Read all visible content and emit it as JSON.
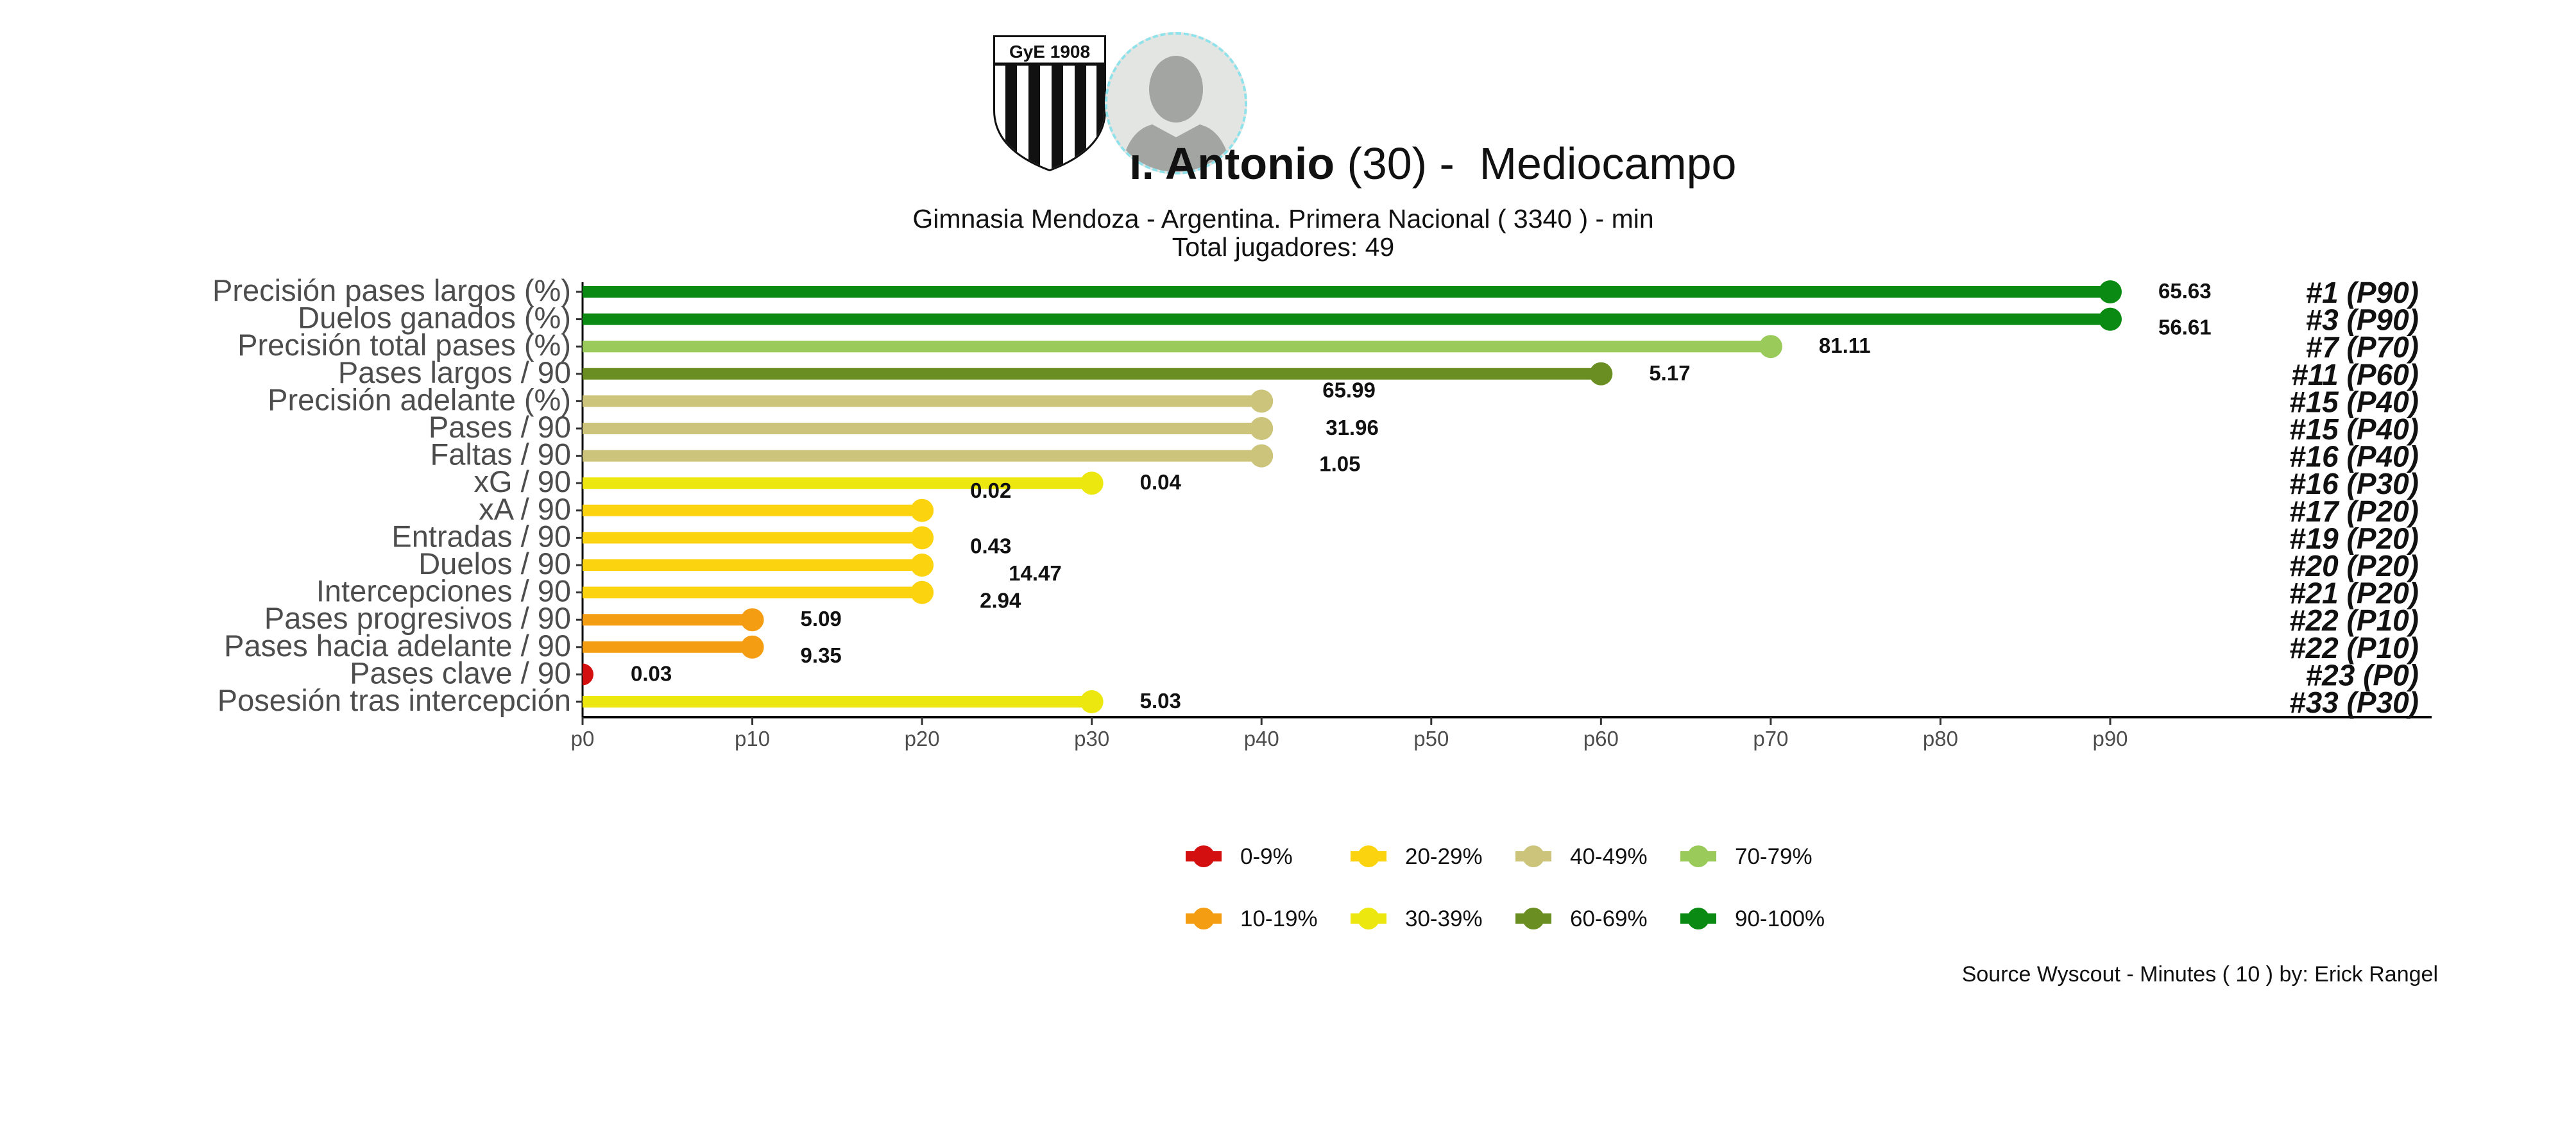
{
  "header": {
    "title_bold": "ı. Antonio",
    "title_age": "(30)",
    "title_sep": "-",
    "title_position": "Mediocampo",
    "subtitle_line1": "Gimnasia Mendoza  -  Argentina. Primera Nacional  ( 3340 ) - min",
    "subtitle_line2": "Total jugadores:  49",
    "badge_text": "GyE 1908",
    "source": "Source Wyscout - Minutes ( 10 ) by: Erick Rangel"
  },
  "legend": [
    {
      "label": "0-9%",
      "color": "#d40f10"
    },
    {
      "label": "10-19%",
      "color": "#f59d12"
    },
    {
      "label": "20-29%",
      "color": "#fbd30e"
    },
    {
      "label": "30-39%",
      "color": "#ece80f"
    },
    {
      "label": "40-49%",
      "color": "#cbc47a"
    },
    {
      "label": "60-69%",
      "color": "#6b8e23"
    },
    {
      "label": "70-79%",
      "color": "#9acb5a"
    },
    {
      "label": "90-100%",
      "color": "#0a8a13"
    }
  ],
  "chart_data": {
    "type": "bar",
    "orientation": "horizontal",
    "style": "lollipop",
    "xlim": [
      0,
      90
    ],
    "x_ticks": [
      "p0",
      "p10",
      "p20",
      "p30",
      "p40",
      "p50",
      "p60",
      "p70",
      "p80",
      "p90"
    ],
    "grid": false,
    "legend_position": "bottom",
    "rows": [
      {
        "label": "Precisión pases largos (%)",
        "percentile": 90,
        "value": "65.63",
        "rank": "#1 (P90)",
        "color": "#0a8a13"
      },
      {
        "label": "Duelos ganados (%)",
        "percentile": 90,
        "value": "56.61",
        "rank": "#3 (P90)",
        "color": "#0a8a13"
      },
      {
        "label": "Precisión total pases (%)",
        "percentile": 70,
        "value": "81.11",
        "rank": "#7 (P70)",
        "color": "#9acb5a"
      },
      {
        "label": "Pases largos / 90",
        "percentile": 60,
        "value": "5.17",
        "rank": "#11 (P60)",
        "color": "#6b8e23"
      },
      {
        "label": "Precisión adelante (%)",
        "percentile": 40,
        "value": "65.99",
        "rank": "#15 (P40)",
        "color": "#cbc47a"
      },
      {
        "label": "Pases / 90",
        "percentile": 40,
        "value": "31.96",
        "rank": "#15 (P40)",
        "color": "#cbc47a"
      },
      {
        "label": "Faltas / 90",
        "percentile": 40,
        "value": "1.05",
        "rank": "#16 (P40)",
        "color": "#cbc47a"
      },
      {
        "label": "xG / 90",
        "percentile": 30,
        "value": "0.04",
        "rank": "#16 (P30)",
        "color": "#ece80f"
      },
      {
        "label": "xA / 90",
        "percentile": 20,
        "value": "0.02",
        "rank": "#17 (P20)",
        "color": "#fbd30e"
      },
      {
        "label": "Entradas / 90",
        "percentile": 20,
        "value": "0.43",
        "rank": "#19 (P20)",
        "color": "#fbd30e"
      },
      {
        "label": "Duelos / 90",
        "percentile": 20,
        "value": "14.47",
        "rank": "#20 (P20)",
        "color": "#fbd30e"
      },
      {
        "label": "Intercepciones / 90",
        "percentile": 20,
        "value": "2.94",
        "rank": "#21 (P20)",
        "color": "#fbd30e"
      },
      {
        "label": "Pases progresivos / 90",
        "percentile": 10,
        "value": "5.09",
        "rank": "#22 (P10)",
        "color": "#f59d12"
      },
      {
        "label": "Pases hacia adelante / 90",
        "percentile": 10,
        "value": "9.35",
        "rank": "#22 (P10)",
        "color": "#f59d12"
      },
      {
        "label": "Pases clave / 90",
        "percentile": 0,
        "value": "0.03",
        "rank": "#23 (P0)",
        "color": "#d40f10"
      },
      {
        "label": "Posesión tras intercepción",
        "percentile": 30,
        "value": "5.03",
        "rank": "#33 (P30)",
        "color": "#ece80f"
      }
    ]
  }
}
